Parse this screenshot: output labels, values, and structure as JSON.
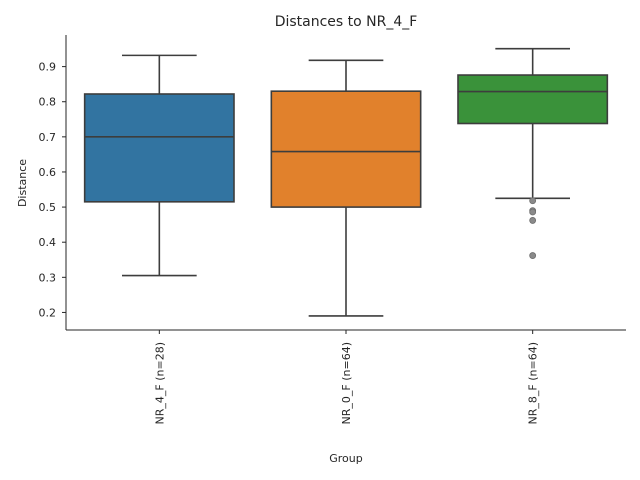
{
  "chart_data": {
    "type": "box",
    "title": "Distances to NR_4_F",
    "xlabel": "Group",
    "ylabel": "Distance",
    "ylim": [
      0.15,
      0.99
    ],
    "yticks": [
      0.2,
      0.3,
      0.4,
      0.5,
      0.6,
      0.7,
      0.8,
      0.9
    ],
    "ytick_labels": [
      "0.2",
      "0.3",
      "0.4",
      "0.5",
      "0.6",
      "0.7",
      "0.8",
      "0.9"
    ],
    "grid": false,
    "categories": [
      "NR_4_F (n=28)",
      "NR_0_F (n=64)",
      "NR_8_F (n=64)"
    ],
    "boxes": [
      {
        "label": "NR_4_F (n=28)",
        "color": "#3274a1",
        "whisker_low": 0.305,
        "q1": 0.515,
        "median": 0.7,
        "q3": 0.822,
        "whisker_high": 0.932,
        "outliers": []
      },
      {
        "label": "NR_0_F (n=64)",
        "color": "#e1812c",
        "whisker_low": 0.19,
        "q1": 0.5,
        "median": 0.658,
        "q3": 0.83,
        "whisker_high": 0.918,
        "outliers": []
      },
      {
        "label": "NR_8_F (n=64)",
        "color": "#3a923a",
        "whisker_low": 0.525,
        "q1": 0.738,
        "median": 0.829,
        "q3": 0.876,
        "whisker_high": 0.951,
        "outliers": [
          0.518,
          0.49,
          0.486,
          0.462,
          0.362
        ]
      }
    ]
  }
}
